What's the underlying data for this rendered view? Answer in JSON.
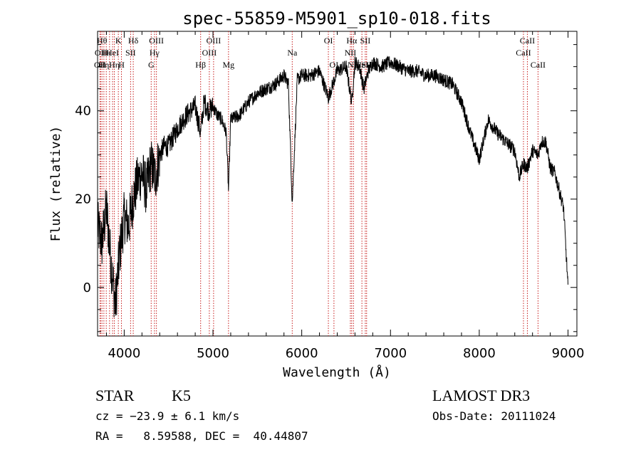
{
  "chart_data": {
    "type": "line",
    "title": "spec-55859-M5901_sp10-018.fits",
    "xlabel": "Wavelength (Å)",
    "ylabel": "Flux (relative)",
    "xlim": [
      3700,
      9100
    ],
    "ylim": [
      -11,
      58
    ],
    "xticks": [
      4000,
      5000,
      6000,
      7000,
      8000,
      9000
    ],
    "yticks": [
      0,
      20,
      40
    ],
    "grid": false,
    "series": [
      {
        "name": "flux",
        "x": [
          3700,
          3750,
          3800,
          3850,
          3900,
          3950,
          4000,
          4050,
          4100,
          4150,
          4200,
          4250,
          4300,
          4350,
          4400,
          4450,
          4500,
          4600,
          4700,
          4800,
          4860,
          4900,
          4950,
          5000,
          5050,
          5100,
          5150,
          5175,
          5200,
          5300,
          5400,
          5500,
          5600,
          5700,
          5800,
          5850,
          5893,
          5950,
          6000,
          6100,
          6200,
          6300,
          6400,
          6500,
          6563,
          6600,
          6650,
          6700,
          6750,
          6800,
          6900,
          7000,
          7100,
          7200,
          7300,
          7400,
          7500,
          7600,
          7700,
          7800,
          7900,
          7950,
          8000,
          8100,
          8200,
          8300,
          8400,
          8450,
          8498,
          8542,
          8600,
          8662,
          8700,
          8750,
          8800,
          8850,
          8900,
          8950,
          9000
        ],
        "y": [
          14,
          10,
          18,
          6,
          -4,
          8,
          16,
          14,
          20,
          24,
          26,
          22,
          28,
          25,
          30,
          32,
          32,
          36,
          39,
          41,
          35,
          42,
          40,
          41,
          39,
          38,
          35,
          22,
          38,
          39,
          42,
          44,
          45,
          46,
          48,
          46,
          19,
          47,
          48,
          48,
          49,
          43,
          49,
          50,
          42,
          51,
          50,
          45,
          49,
          51,
          50,
          51,
          50,
          49,
          49,
          48,
          48,
          47,
          46,
          42,
          35,
          32,
          29,
          38,
          35,
          33,
          31,
          25,
          28,
          27,
          31,
          30,
          33,
          33,
          27,
          26,
          22,
          18,
          0
        ]
      }
    ],
    "line_markers": [
      {
        "x": 3727,
        "label": "OII",
        "row": 2
      },
      {
        "x": 3734,
        "label": "OII",
        "row": 1
      },
      {
        "x": 3750,
        "label": "Hθ",
        "row": 0
      },
      {
        "x": 3771,
        "label": "Hη",
        "row": 2
      },
      {
        "x": 3798,
        "label": "Hι",
        "row": 1
      },
      {
        "x": 3835,
        "label": "",
        "row": 0
      },
      {
        "x": 3869,
        "label": "HeI",
        "row": 1
      },
      {
        "x": 3889,
        "label": "Hη",
        "row": 2
      },
      {
        "x": 3934,
        "label": "K",
        "row": 0
      },
      {
        "x": 3969,
        "label": "H",
        "row": 2
      },
      {
        "x": 4072,
        "label": "SII",
        "row": 1
      },
      {
        "x": 4102,
        "label": "Hδ",
        "row": 0
      },
      {
        "x": 4304,
        "label": "G",
        "row": 2
      },
      {
        "x": 4341,
        "label": "Hγ",
        "row": 1
      },
      {
        "x": 4363,
        "label": "OIII",
        "row": 0
      },
      {
        "x": 4861,
        "label": "Hβ",
        "row": 2
      },
      {
        "x": 4959,
        "label": "OIII",
        "row": 1
      },
      {
        "x": 5007,
        "label": "OIII",
        "row": 0
      },
      {
        "x": 5175,
        "label": "Mg",
        "row": 2
      },
      {
        "x": 5893,
        "label": "Na",
        "row": 1
      },
      {
        "x": 6300,
        "label": "OI",
        "row": 0
      },
      {
        "x": 6363,
        "label": "OI",
        "row": 2
      },
      {
        "x": 6548,
        "label": "NII",
        "row": 1
      },
      {
        "x": 6563,
        "label": "Hα",
        "row": 0
      },
      {
        "x": 6583,
        "label": "NII",
        "row": 2
      },
      {
        "x": 6678,
        "label": "HeI",
        "row": 2
      },
      {
        "x": 6716,
        "label": "SII",
        "row": 0
      },
      {
        "x": 6731,
        "label": "SII",
        "row": 2
      },
      {
        "x": 8498,
        "label": "CaII",
        "row": 1
      },
      {
        "x": 8542,
        "label": "CaII",
        "row": 0
      },
      {
        "x": 8662,
        "label": "CaII",
        "row": 2
      }
    ]
  },
  "info": {
    "object_class": "STAR",
    "subclass": "K5",
    "survey": "LAMOST DR3",
    "cz": "cz = −23.9 ± 6.1 km/s",
    "obs_date": "Obs-Date: 20111024",
    "coords": "RA =   8.59588, DEC =  40.44807"
  }
}
